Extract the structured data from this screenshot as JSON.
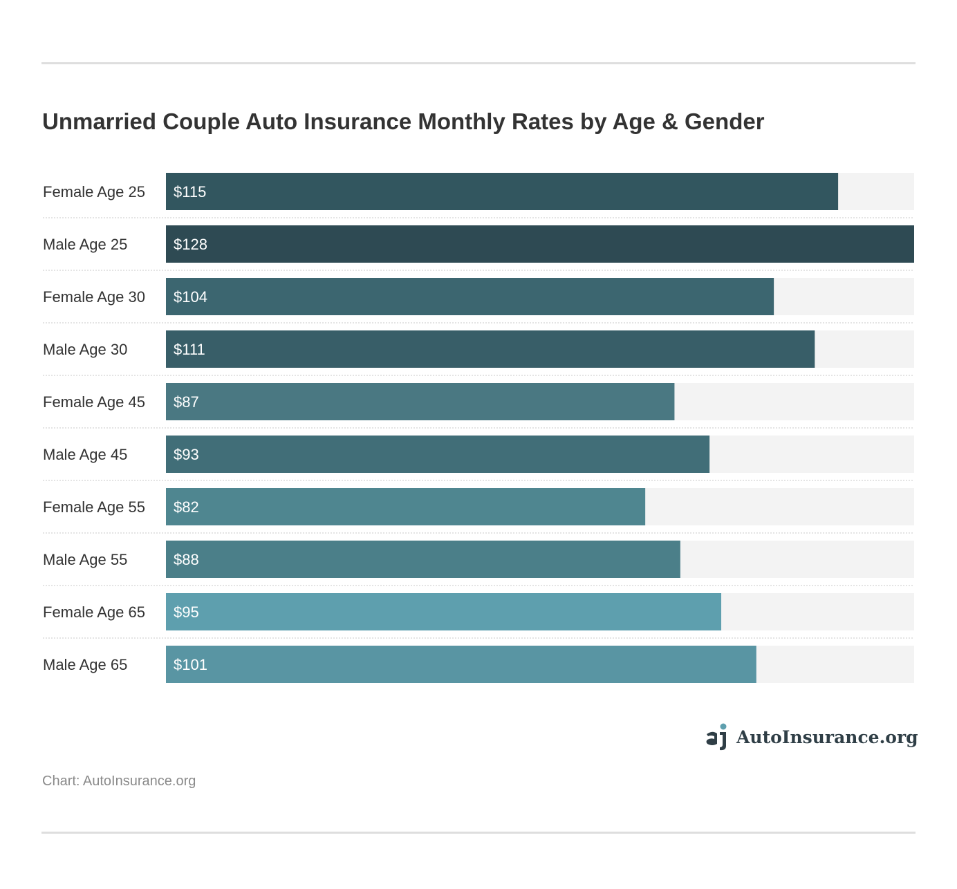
{
  "title": "Unmarried Couple Auto Insurance Monthly Rates by Age & Gender",
  "credit": "Chart: AutoInsurance.org",
  "logo": {
    "text": "AutoInsurance.org",
    "icon": "autoinsurance-logo-icon"
  },
  "colors": {
    "track": "#f3f3f3",
    "bars": [
      "#32565f",
      "#2e4a53",
      "#3c6670",
      "#385e68",
      "#4a7882",
      "#416e78",
      "#4f8690",
      "#4b7f89",
      "#5e9fae",
      "#5995a3"
    ]
  },
  "chart_data": {
    "type": "bar",
    "orientation": "horizontal",
    "categories": [
      "Female Age 25",
      "Male Age 25",
      "Female Age 30",
      "Male Age 30",
      "Female Age 45",
      "Male Age 45",
      "Female Age 55",
      "Male Age 55",
      "Female Age 65",
      "Male Age 65"
    ],
    "values": [
      115,
      128,
      104,
      111,
      87,
      93,
      82,
      88,
      95,
      101
    ],
    "value_labels": [
      "$115",
      "$128",
      "$104",
      "$111",
      "$87",
      "$93",
      "$82",
      "$88",
      "$95",
      "$101"
    ],
    "xlim": [
      0,
      128
    ],
    "grid": false,
    "legend": "none"
  }
}
